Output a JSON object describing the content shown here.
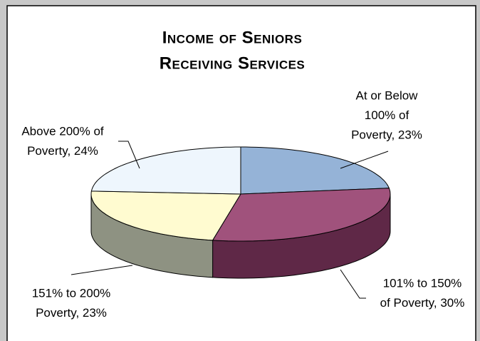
{
  "chart_data": {
    "type": "pie3d",
    "title": [
      "Income of Seniors",
      "Receiving Services"
    ],
    "labels": [
      [
        "At or Below",
        "100% of",
        "Poverty, 23%"
      ],
      [
        "101% to 150%",
        "of Poverty, 30%"
      ],
      [
        "151% to 200%",
        "Poverty, 23%"
      ],
      [
        "Above 200% of",
        "Poverty, 24%"
      ]
    ],
    "values": [
      23,
      30,
      23,
      24
    ],
    "colors": [
      "#95b3d7",
      "#a0527c",
      "#fffbd0",
      "#eef6fd"
    ],
    "side_colors": [
      "#6a86aa",
      "#5f2847",
      "#8e9282",
      "#b8c3cc"
    ]
  }
}
